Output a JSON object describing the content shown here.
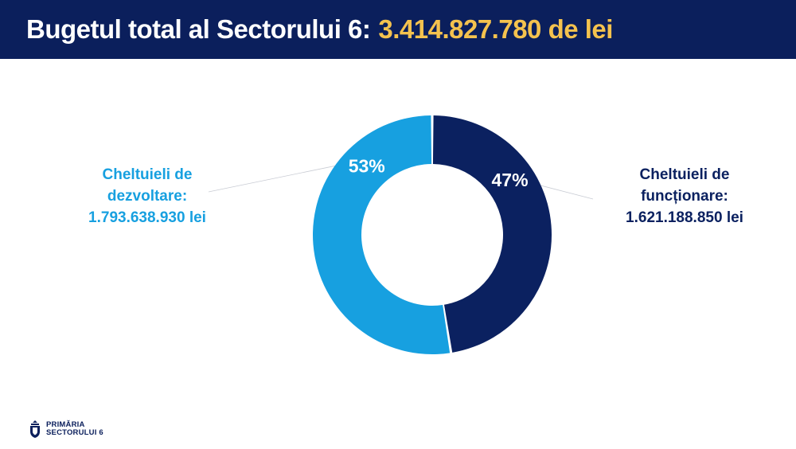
{
  "header": {
    "title_prefix": "Bugetul total al Sectorului 6:",
    "title_amount": "3.414.827.780 de lei"
  },
  "chart_data": {
    "type": "pie",
    "variant": "donut",
    "series": [
      {
        "name": "Cheltuieli de funcționare",
        "label_lines": [
          "Cheltuieli de",
          "funcționare:",
          "1.621.188.850 lei"
        ],
        "value": 1621188850,
        "percent_label": "47%",
        "color": "#0b2160"
      },
      {
        "name": "Cheltuieli de dezvoltare",
        "label_lines": [
          "Cheltuieli de",
          "dezvoltare:",
          "1.793.638.930 lei"
        ],
        "value": 1793638930,
        "percent_label": "53%",
        "color": "#17a0e0"
      }
    ]
  },
  "footer": {
    "logo_line1": "PRIMĂRIA",
    "logo_line2": "SECTORULUI 6"
  }
}
